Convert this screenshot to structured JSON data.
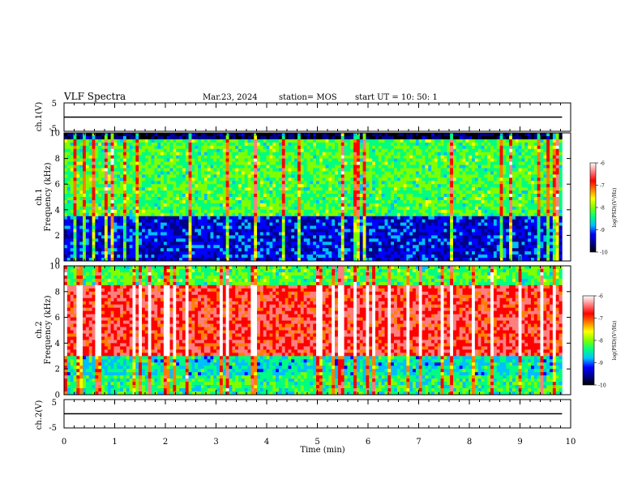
{
  "header": {
    "title": "VLF Spectra",
    "date": "Mar.23, 2024",
    "station": "station= MOS",
    "start": "start  UT  =   10: 50: 1"
  },
  "colors": {
    "colormap": [
      "#000000",
      "#00008b",
      "#0000ff",
      "#00bfff",
      "#00ff7f",
      "#7fff00",
      "#ffff00",
      "#ff7f00",
      "#ff0000",
      "#ff7f7f",
      "#ffffff"
    ]
  },
  "chart_data": [
    {
      "type": "line",
      "panel": "ch1-waveform",
      "ylabel": "ch.1(V)",
      "ylim": [
        -5,
        5
      ],
      "y_ticks": [
        "5",
        "-5"
      ],
      "x": [
        0,
        9.83
      ],
      "values": [
        0,
        0
      ]
    },
    {
      "type": "heatmap",
      "panel": "ch1-spectrogram",
      "ylabel": "ch.1 Frequency (kHz)",
      "ylim": [
        0,
        10
      ],
      "y_ticks": [
        "0",
        "2",
        "4",
        "6",
        "8",
        "10"
      ],
      "xlim": [
        0,
        9.83
      ],
      "dominant_band_khz": [
        3.5,
        9.5
      ],
      "colorbar": {
        "label": "log(PSD)(V²/Hz)",
        "ticks": [
          "-6",
          "-7",
          "-8",
          "-9",
          "-10"
        ],
        "range": [
          -10,
          -6
        ]
      }
    },
    {
      "type": "heatmap",
      "panel": "ch2-spectrogram",
      "ylabel": "ch.2 Frequency (kHz)",
      "ylim": [
        0,
        10
      ],
      "y_ticks": [
        "0",
        "2",
        "4",
        "6",
        "8",
        "10"
      ],
      "xlim": [
        0,
        9.83
      ],
      "dominant_band_khz": [
        3,
        8.5
      ],
      "colorbar": {
        "label": "log(PSD)(V²/Hz)",
        "ticks": [
          "-6",
          "-7",
          "-8",
          "-9",
          "-10"
        ],
        "range": [
          -10,
          -6
        ]
      }
    },
    {
      "type": "line",
      "panel": "ch2-waveform",
      "ylabel": "ch.2(V)",
      "ylim": [
        -5,
        5
      ],
      "y_ticks": [
        "5",
        "-5"
      ],
      "x": [
        0,
        9.83
      ],
      "values": [
        0,
        0
      ]
    }
  ],
  "x_axis": {
    "label": "Time  (min)",
    "ticks": [
      "0",
      "1",
      "2",
      "3",
      "4",
      "5",
      "6",
      "7",
      "8",
      "9",
      "10"
    ],
    "range": [
      0,
      10
    ]
  }
}
